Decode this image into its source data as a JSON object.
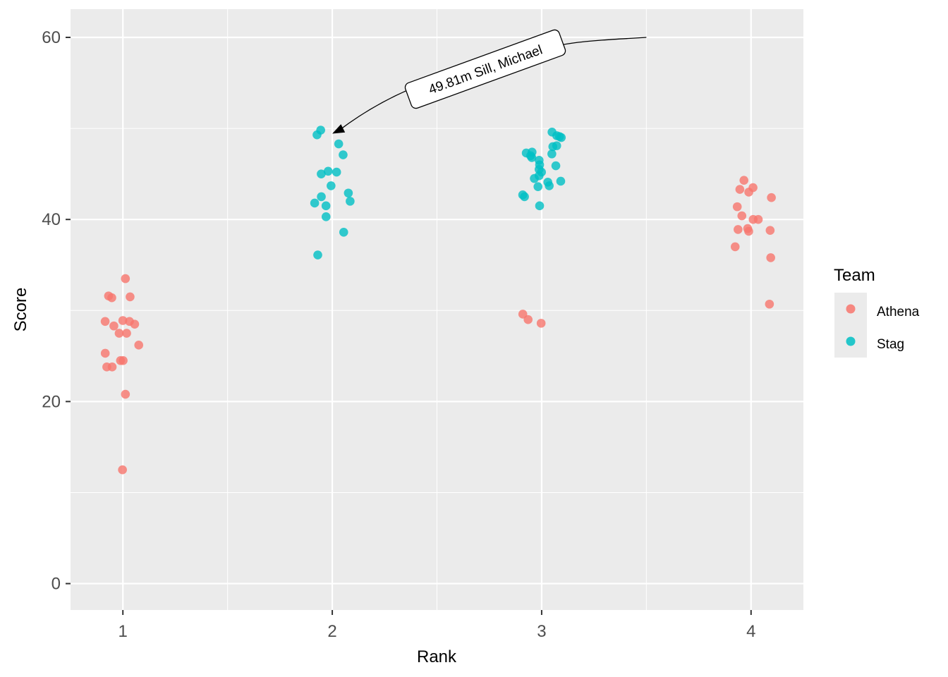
{
  "chart_data": {
    "type": "scatter",
    "title": "",
    "xlabel": "Rank",
    "ylabel": "Score",
    "xlim": [
      0.75,
      4.25
    ],
    "ylim": [
      -2.9,
      63.1
    ],
    "x_ticks": [
      1,
      2,
      3,
      4
    ],
    "y_ticks": [
      0,
      20,
      40,
      60
    ],
    "grid": true,
    "legend": {
      "title": "Team",
      "placement": "right"
    },
    "colors": {
      "Athena": "#F8766D",
      "Stag": "#00BFC4"
    },
    "series": [
      {
        "name": "Athena",
        "color": "#F8766D",
        "points": [
          {
            "x": 1,
            "y": 12.5
          },
          {
            "x": 1,
            "y": 20.8
          },
          {
            "x": 1,
            "y": 23.8
          },
          {
            "x": 1,
            "y": 23.8
          },
          {
            "x": 1,
            "y": 24.5
          },
          {
            "x": 1,
            "y": 24.5
          },
          {
            "x": 1,
            "y": 25.3
          },
          {
            "x": 1,
            "y": 26.2
          },
          {
            "x": 1,
            "y": 27.5
          },
          {
            "x": 1,
            "y": 27.5
          },
          {
            "x": 1,
            "y": 28.3
          },
          {
            "x": 1,
            "y": 28.5
          },
          {
            "x": 1,
            "y": 28.8
          },
          {
            "x": 1,
            "y": 28.8
          },
          {
            "x": 1,
            "y": 28.9
          },
          {
            "x": 1,
            "y": 31.4
          },
          {
            "x": 1,
            "y": 31.5
          },
          {
            "x": 1,
            "y": 31.6
          },
          {
            "x": 1,
            "y": 33.5
          },
          {
            "x": 3,
            "y": 28.6
          },
          {
            "x": 3,
            "y": 29.0
          },
          {
            "x": 3,
            "y": 29.6
          },
          {
            "x": 4,
            "y": 30.7
          },
          {
            "x": 4,
            "y": 35.8
          },
          {
            "x": 4,
            "y": 37.0
          },
          {
            "x": 4,
            "y": 38.7
          },
          {
            "x": 4,
            "y": 38.8
          },
          {
            "x": 4,
            "y": 38.9
          },
          {
            "x": 4,
            "y": 39.0
          },
          {
            "x": 4,
            "y": 40.0
          },
          {
            "x": 4,
            "y": 40.0
          },
          {
            "x": 4,
            "y": 40.4
          },
          {
            "x": 4,
            "y": 41.4
          },
          {
            "x": 4,
            "y": 42.4
          },
          {
            "x": 4,
            "y": 43.0
          },
          {
            "x": 4,
            "y": 43.3
          },
          {
            "x": 4,
            "y": 43.5
          },
          {
            "x": 4,
            "y": 44.3
          }
        ]
      },
      {
        "name": "Stag",
        "color": "#00BFC4",
        "points": [
          {
            "x": 2,
            "y": 36.1
          },
          {
            "x": 2,
            "y": 38.6
          },
          {
            "x": 2,
            "y": 40.3
          },
          {
            "x": 2,
            "y": 41.5
          },
          {
            "x": 2,
            "y": 41.8
          },
          {
            "x": 2,
            "y": 42.0
          },
          {
            "x": 2,
            "y": 42.5
          },
          {
            "x": 2,
            "y": 42.9
          },
          {
            "x": 2,
            "y": 43.7
          },
          {
            "x": 2,
            "y": 45.0
          },
          {
            "x": 2,
            "y": 45.2
          },
          {
            "x": 2,
            "y": 45.3
          },
          {
            "x": 2,
            "y": 47.1
          },
          {
            "x": 2,
            "y": 48.3
          },
          {
            "x": 2,
            "y": 49.3
          },
          {
            "x": 2,
            "y": 49.81
          },
          {
            "x": 3,
            "y": 41.5
          },
          {
            "x": 3,
            "y": 42.5
          },
          {
            "x": 3,
            "y": 42.7
          },
          {
            "x": 3,
            "y": 43.6
          },
          {
            "x": 3,
            "y": 43.7
          },
          {
            "x": 3,
            "y": 44.1
          },
          {
            "x": 3,
            "y": 44.2
          },
          {
            "x": 3,
            "y": 44.5
          },
          {
            "x": 3,
            "y": 44.8
          },
          {
            "x": 3,
            "y": 45.2
          },
          {
            "x": 3,
            "y": 45.5
          },
          {
            "x": 3,
            "y": 45.9
          },
          {
            "x": 3,
            "y": 46.0
          },
          {
            "x": 3,
            "y": 46.5
          },
          {
            "x": 3,
            "y": 46.8
          },
          {
            "x": 3,
            "y": 47.0
          },
          {
            "x": 3,
            "y": 47.2
          },
          {
            "x": 3,
            "y": 47.3
          },
          {
            "x": 3,
            "y": 47.4
          },
          {
            "x": 3,
            "y": 48.0
          },
          {
            "x": 3,
            "y": 48.1
          },
          {
            "x": 3,
            "y": 49.0
          },
          {
            "x": 3,
            "y": 49.1
          },
          {
            "x": 3,
            "y": 49.2
          },
          {
            "x": 3,
            "y": 49.6
          }
        ]
      }
    ],
    "annotation": {
      "text": "49.81m  Sill, Michael",
      "point": {
        "x": 2,
        "y": 49.81
      },
      "arrow_from": {
        "x": 3.5,
        "y": 60
      }
    }
  }
}
